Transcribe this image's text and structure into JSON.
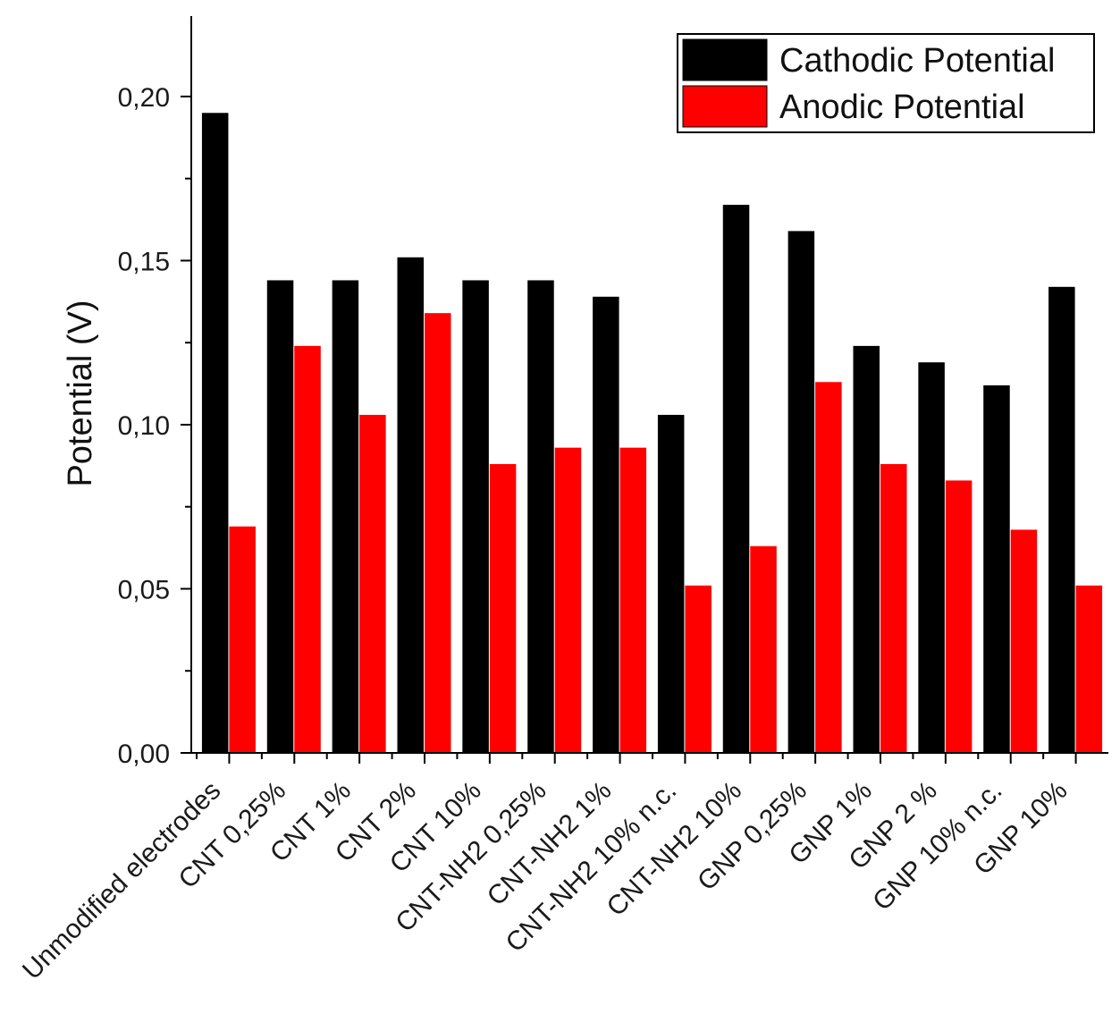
{
  "chart_data": {
    "type": "bar",
    "title": "",
    "xlabel": "",
    "ylabel": "Potential (V)",
    "ylim": [
      0,
      0.2245
    ],
    "yticks": [
      0.0,
      0.05,
      0.1,
      0.15,
      0.2
    ],
    "ytick_labels": [
      "0,00",
      "0,05",
      "0,10",
      "0,15",
      "0,20"
    ],
    "grid": false,
    "legend_position": "top-right",
    "categories": [
      "Unmodified electrodes",
      "CNT 0,25%",
      "CNT 1%",
      "CNT 2%",
      "CNT 10%",
      "CNT-NH2 0,25%",
      "CNT-NH2 1%",
      "CNT-NH2 10% n.c.",
      "CNT-NH2 10%",
      "GNP 0,25%",
      "GNP 1%",
      "GNP 2 %",
      "GNP 10% n.c.",
      "GNP 10%"
    ],
    "series": [
      {
        "name": "Cathodic Potential",
        "color": "#000000",
        "values": [
          0.195,
          0.144,
          0.144,
          0.151,
          0.144,
          0.144,
          0.139,
          0.103,
          0.167,
          0.159,
          0.124,
          0.119,
          0.112,
          0.142
        ]
      },
      {
        "name": "Anodic Potential",
        "color": "#ff0000",
        "values": [
          0.069,
          0.124,
          0.103,
          0.134,
          0.088,
          0.093,
          0.093,
          0.051,
          0.063,
          0.113,
          0.088,
          0.083,
          0.068,
          0.051
        ]
      }
    ]
  }
}
